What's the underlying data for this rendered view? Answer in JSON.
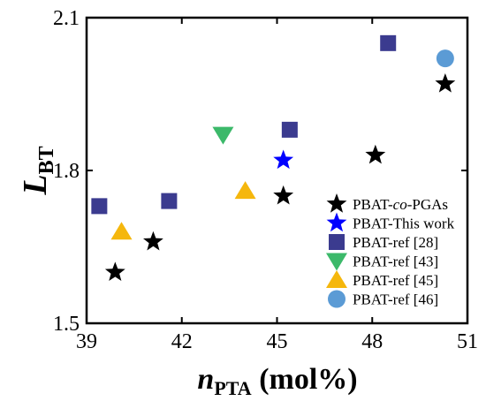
{
  "chart_data": {
    "type": "scatter",
    "title": "",
    "xlabel": {
      "main": "n",
      "sub": "PTA",
      "unit": " (mol%)"
    },
    "ylabel": {
      "main": "L",
      "sub": "BT"
    },
    "xlim": [
      39,
      51
    ],
    "ylim": [
      1.5,
      2.1
    ],
    "xticks": [
      39,
      42,
      45,
      48,
      51
    ],
    "yticks": [
      1.5,
      1.8,
      2.1
    ],
    "ytick_labels": [
      "1.5",
      "1.8",
      "2.1"
    ],
    "grid": false,
    "legend_position": "bottom-right",
    "series": [
      {
        "name": "PBAT-co-PGAs",
        "name_parts": [
          "PBAT-",
          "co",
          "-PGAs"
        ],
        "marker": "star",
        "color": "#000000",
        "points": [
          [
            39.9,
            1.6
          ],
          [
            41.1,
            1.66
          ],
          [
            45.2,
            1.75
          ],
          [
            48.1,
            1.83
          ],
          [
            50.3,
            1.97
          ]
        ]
      },
      {
        "name": "PBAT-This work",
        "marker": "star",
        "color": "#0000ff",
        "points": [
          [
            45.2,
            1.82
          ]
        ]
      },
      {
        "name": "PBAT-ref [28]",
        "marker": "square",
        "color": "#3b3b8f",
        "points": [
          [
            39.4,
            1.73
          ],
          [
            41.6,
            1.74
          ],
          [
            45.4,
            1.88
          ],
          [
            48.5,
            2.05
          ]
        ]
      },
      {
        "name": "PBAT-ref [43]",
        "marker": "triangle-down",
        "color": "#3cb96a",
        "points": [
          [
            43.3,
            1.87
          ]
        ]
      },
      {
        "name": "PBAT-ref [45]",
        "marker": "triangle-up",
        "color": "#f5b70d",
        "points": [
          [
            40.1,
            1.68
          ],
          [
            44.0,
            1.76
          ]
        ]
      },
      {
        "name": "PBAT-ref [46]",
        "marker": "circle",
        "color": "#5b9bd5",
        "points": [
          [
            50.3,
            2.02
          ]
        ]
      }
    ]
  }
}
